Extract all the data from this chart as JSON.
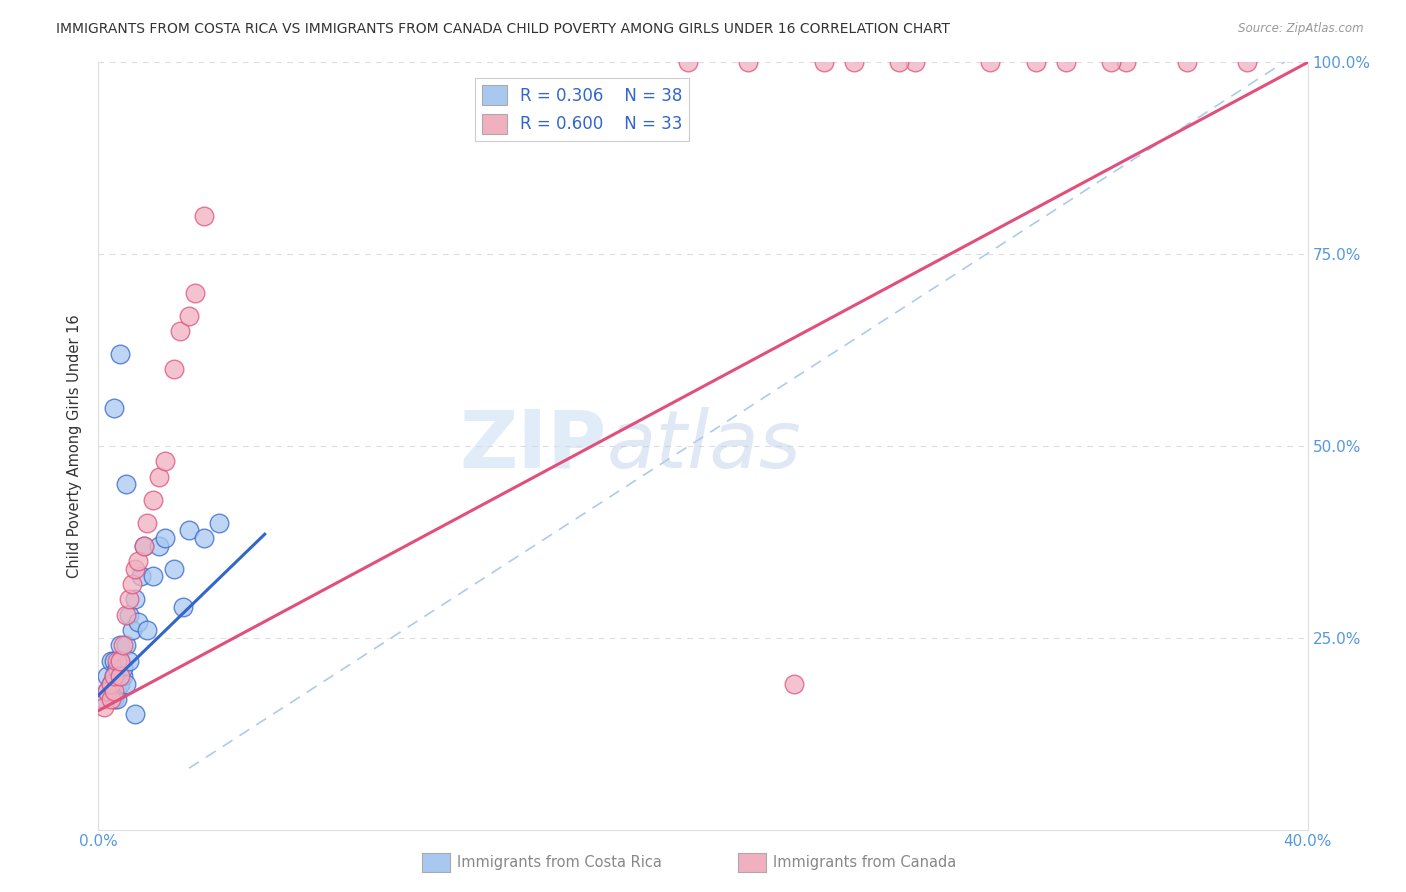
{
  "title": "IMMIGRANTS FROM COSTA RICA VS IMMIGRANTS FROM CANADA CHILD POVERTY AMONG GIRLS UNDER 16 CORRELATION CHART",
  "source": "Source: ZipAtlas.com",
  "ylabel": "Child Poverty Among Girls Under 16",
  "xlim": [
    0.0,
    0.4
  ],
  "ylim": [
    0.0,
    1.0
  ],
  "legend_R_blue": "0.306",
  "legend_N_blue": "38",
  "legend_R_pink": "0.600",
  "legend_N_pink": "33",
  "legend_label_blue": "Immigrants from Costa Rica",
  "legend_label_pink": "Immigrants from Canada",
  "blue_color": "#a8c8f0",
  "pink_color": "#f0b0c0",
  "trend_blue_color": "#3366cc",
  "trend_pink_color": "#e0507a",
  "ref_line_color": "#aaccee",
  "grid_color": "#dddddd",
  "blue_x": [
    0.002,
    0.003,
    0.003,
    0.004,
    0.004,
    0.005,
    0.005,
    0.005,
    0.006,
    0.006,
    0.006,
    0.007,
    0.007,
    0.007,
    0.008,
    0.008,
    0.009,
    0.009,
    0.01,
    0.01,
    0.011,
    0.012,
    0.013,
    0.014,
    0.015,
    0.016,
    0.018,
    0.02,
    0.022,
    0.025,
    0.028,
    0.03,
    0.035,
    0.04,
    0.005,
    0.007,
    0.009,
    0.012
  ],
  "blue_y": [
    0.17,
    0.18,
    0.2,
    0.19,
    0.22,
    0.17,
    0.2,
    0.22,
    0.18,
    0.21,
    0.17,
    0.19,
    0.22,
    0.24,
    0.2,
    0.21,
    0.19,
    0.24,
    0.22,
    0.28,
    0.26,
    0.3,
    0.27,
    0.33,
    0.37,
    0.26,
    0.33,
    0.37,
    0.38,
    0.34,
    0.29,
    0.39,
    0.38,
    0.4,
    0.55,
    0.62,
    0.45,
    0.15
  ],
  "pink_x": [
    0.002,
    0.003,
    0.004,
    0.004,
    0.005,
    0.005,
    0.006,
    0.007,
    0.007,
    0.008,
    0.009,
    0.01,
    0.011,
    0.012,
    0.013,
    0.015,
    0.016,
    0.018,
    0.02,
    0.022,
    0.025,
    0.027,
    0.03,
    0.032,
    0.035,
    0.23,
    0.25,
    0.27,
    0.31,
    0.32,
    0.34,
    0.36,
    0.38
  ],
  "pink_y": [
    0.16,
    0.18,
    0.17,
    0.19,
    0.18,
    0.2,
    0.22,
    0.2,
    0.22,
    0.24,
    0.28,
    0.3,
    0.32,
    0.34,
    0.35,
    0.37,
    0.4,
    0.43,
    0.46,
    0.48,
    0.6,
    0.65,
    0.67,
    0.7,
    0.8,
    0.19,
    1.0,
    1.0,
    1.0,
    1.0,
    1.0,
    1.0,
    1.0
  ],
  "pink_top_x": [
    0.195,
    0.215,
    0.24,
    0.265,
    0.295,
    0.335
  ],
  "pink_top_y": [
    1.0,
    1.0,
    1.0,
    1.0,
    1.0,
    1.0
  ],
  "blue_trend_x0": 0.0,
  "blue_trend_y0": 0.175,
  "blue_trend_x1": 0.055,
  "blue_trend_y1": 0.385,
  "pink_trend_x0": 0.0,
  "pink_trend_y0": 0.155,
  "pink_trend_x1": 0.4,
  "pink_trend_y1": 1.0
}
